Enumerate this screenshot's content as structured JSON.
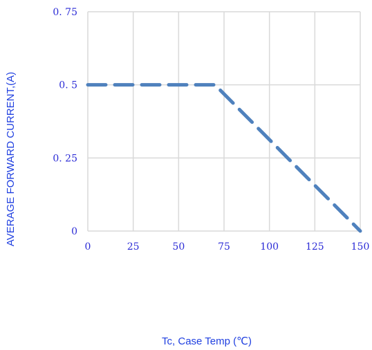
{
  "chart_data": {
    "type": "line",
    "xlabel": "Tc, Case Temp (℃)",
    "ylabel": "AVERAGE FORWARD CURRENT,(A)",
    "xlim": [
      0,
      150
    ],
    "ylim": [
      0,
      0.75
    ],
    "xticks": [
      0,
      25,
      50,
      75,
      100,
      125,
      150
    ],
    "xtick_labels": [
      "0",
      "25",
      "50",
      "75",
      "100",
      "125",
      "150"
    ],
    "yticks": [
      0,
      0.25,
      0.5,
      0.75
    ],
    "ytick_labels": [
      "0",
      "0. 25",
      "0. 5",
      "0. 75"
    ],
    "grid": true,
    "series": [
      {
        "x": [
          0,
          70,
          150
        ],
        "y": [
          0.5,
          0.5,
          0.0
        ],
        "color": "#4f81bd",
        "line_style": "dashed"
      }
    ]
  },
  "colors": {
    "text": "#2b2bd6",
    "axis_title": "#1f3fe0",
    "grid": "#d9d9d9",
    "series": "#4f81bd"
  }
}
